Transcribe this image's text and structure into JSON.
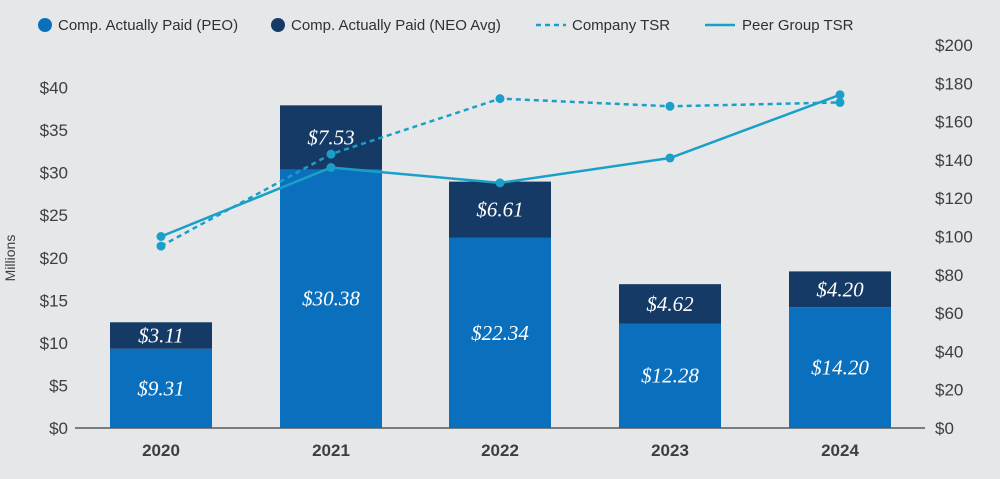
{
  "chart_data": {
    "type": "bar",
    "categories": [
      "2020",
      "2021",
      "2022",
      "2023",
      "2024"
    ],
    "series": [
      {
        "name": "Comp. Actually Paid (PEO)",
        "kind": "stacked-bar",
        "axis": "left",
        "color": "#0a6fbd",
        "values": [
          9.31,
          30.38,
          22.34,
          12.28,
          14.2
        ],
        "labels": [
          "$9.31",
          "$30.38",
          "$22.34",
          "$12.28",
          "$14.20"
        ]
      },
      {
        "name": "Comp. Actually Paid (NEO Avg)",
        "kind": "stacked-bar",
        "axis": "left",
        "color": "#153a66",
        "values": [
          3.11,
          7.53,
          6.61,
          4.62,
          4.2
        ],
        "labels": [
          "$3.11",
          "$7.53",
          "$6.61",
          "$4.62",
          "$4.20"
        ]
      },
      {
        "name": "Company TSR",
        "kind": "line-dashed",
        "axis": "right",
        "color": "#1aa0c8",
        "values": [
          95,
          143,
          172,
          168,
          170
        ]
      },
      {
        "name": "Peer Group TSR",
        "kind": "line-solid",
        "axis": "right",
        "color": "#1aa0c8",
        "values": [
          100,
          136,
          128,
          141,
          174
        ]
      }
    ],
    "ylabel": "Millions",
    "ylim": [
      0,
      45
    ],
    "yticks": [
      "$0",
      "$5",
      "$10",
      "$15",
      "$20",
      "$25",
      "$30",
      "$35",
      "$40"
    ],
    "y2lim": [
      0,
      200
    ],
    "y2ticks": [
      "$0",
      "$20",
      "$40",
      "$60",
      "$80",
      "$100",
      "$120",
      "$140",
      "$160",
      "$180",
      "$200"
    ],
    "legend_position": "top",
    "grid": false
  }
}
